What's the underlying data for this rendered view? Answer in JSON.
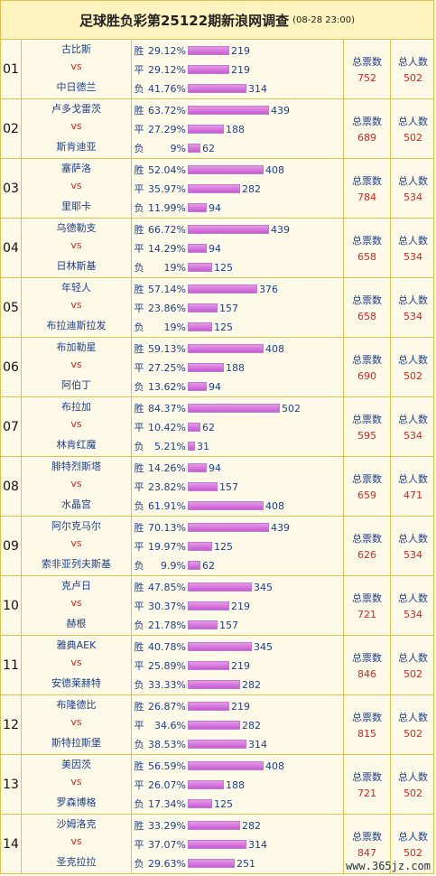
{
  "title": "足球胜负彩第25122期新浪网调查",
  "time": "(08-28 23:00)",
  "labels": {
    "vs": "vs",
    "win": "胜",
    "draw": "平",
    "lose": "负",
    "total_tickets": "总票数",
    "total_people": "总人数"
  },
  "watermark": "www.365jz.com",
  "rows": [
    {
      "no": "01",
      "home": "古比斯",
      "away": "中日德兰",
      "win_pct": "29.12%",
      "win": 219,
      "draw_pct": "29.12%",
      "draw": 219,
      "lose_pct": "41.76%",
      "lose": 314,
      "tickets": 752,
      "people": 502
    },
    {
      "no": "02",
      "home": "卢多戈雷茨",
      "away": "斯肯迪亚",
      "win_pct": "63.72%",
      "win": 439,
      "draw_pct": "27.29%",
      "draw": 188,
      "lose_pct": "9%",
      "lose": 62,
      "tickets": 689,
      "people": 502
    },
    {
      "no": "03",
      "home": "塞萨洛",
      "away": "里耶卡",
      "win_pct": "52.04%",
      "win": 408,
      "draw_pct": "35.97%",
      "draw": 282,
      "lose_pct": "11.99%",
      "lose": 94,
      "tickets": 784,
      "people": 534
    },
    {
      "no": "04",
      "home": "乌德勒支",
      "away": "日林斯基",
      "win_pct": "66.72%",
      "win": 439,
      "draw_pct": "14.29%",
      "draw": 94,
      "lose_pct": "19%",
      "lose": 125,
      "tickets": 658,
      "people": 534
    },
    {
      "no": "05",
      "home": "年轻人",
      "away": "布拉迪斯拉发",
      "win_pct": "57.14%",
      "win": 376,
      "draw_pct": "23.86%",
      "draw": 157,
      "lose_pct": "19%",
      "lose": 125,
      "tickets": 658,
      "people": 534
    },
    {
      "no": "06",
      "home": "布加勒星",
      "away": "阿伯丁",
      "win_pct": "59.13%",
      "win": 408,
      "draw_pct": "27.25%",
      "draw": 188,
      "lose_pct": "13.62%",
      "lose": 94,
      "tickets": 690,
      "people": 502
    },
    {
      "no": "07",
      "home": "布拉加",
      "away": "林肯红魔",
      "win_pct": "84.37%",
      "win": 502,
      "draw_pct": "10.42%",
      "draw": 62,
      "lose_pct": "5.21%",
      "lose": 31,
      "tickets": 595,
      "people": 534
    },
    {
      "no": "08",
      "home": "腓特烈斯塔",
      "away": "水晶宫",
      "win_pct": "14.26%",
      "win": 94,
      "draw_pct": "23.82%",
      "draw": 157,
      "lose_pct": "61.91%",
      "lose": 408,
      "tickets": 659,
      "people": 471
    },
    {
      "no": "09",
      "home": "阿尔克马尔",
      "away": "索非亚列夫斯基",
      "win_pct": "70.13%",
      "win": 439,
      "draw_pct": "19.97%",
      "draw": 125,
      "lose_pct": "9.9%",
      "lose": 62,
      "tickets": 626,
      "people": 534
    },
    {
      "no": "10",
      "home": "克卢日",
      "away": "赫根",
      "win_pct": "47.85%",
      "win": 345,
      "draw_pct": "30.37%",
      "draw": 219,
      "lose_pct": "21.78%",
      "lose": 157,
      "tickets": 721,
      "people": 534
    },
    {
      "no": "11",
      "home": "雅典AEK",
      "away": "安德莱赫特",
      "win_pct": "40.78%",
      "win": 345,
      "draw_pct": "25.89%",
      "draw": 219,
      "lose_pct": "33.33%",
      "lose": 282,
      "tickets": 846,
      "people": 502
    },
    {
      "no": "12",
      "home": "布隆德比",
      "away": "斯特拉斯堡",
      "win_pct": "26.87%",
      "win": 219,
      "draw_pct": "34.6%",
      "draw": 282,
      "lose_pct": "38.53%",
      "lose": 314,
      "tickets": 815,
      "people": 502
    },
    {
      "no": "13",
      "home": "美因茨",
      "away": "罗森博格",
      "win_pct": "56.59%",
      "win": 408,
      "draw_pct": "26.07%",
      "draw": 188,
      "lose_pct": "17.34%",
      "lose": 125,
      "tickets": 721,
      "people": 502
    },
    {
      "no": "14",
      "home": "沙姆洛克",
      "away": "圣克拉拉",
      "win_pct": "33.29%",
      "win": 282,
      "draw_pct": "37.07%",
      "draw": 314,
      "lose_pct": "29.63%",
      "lose": 251,
      "tickets": 847,
      "people": 502
    }
  ]
}
